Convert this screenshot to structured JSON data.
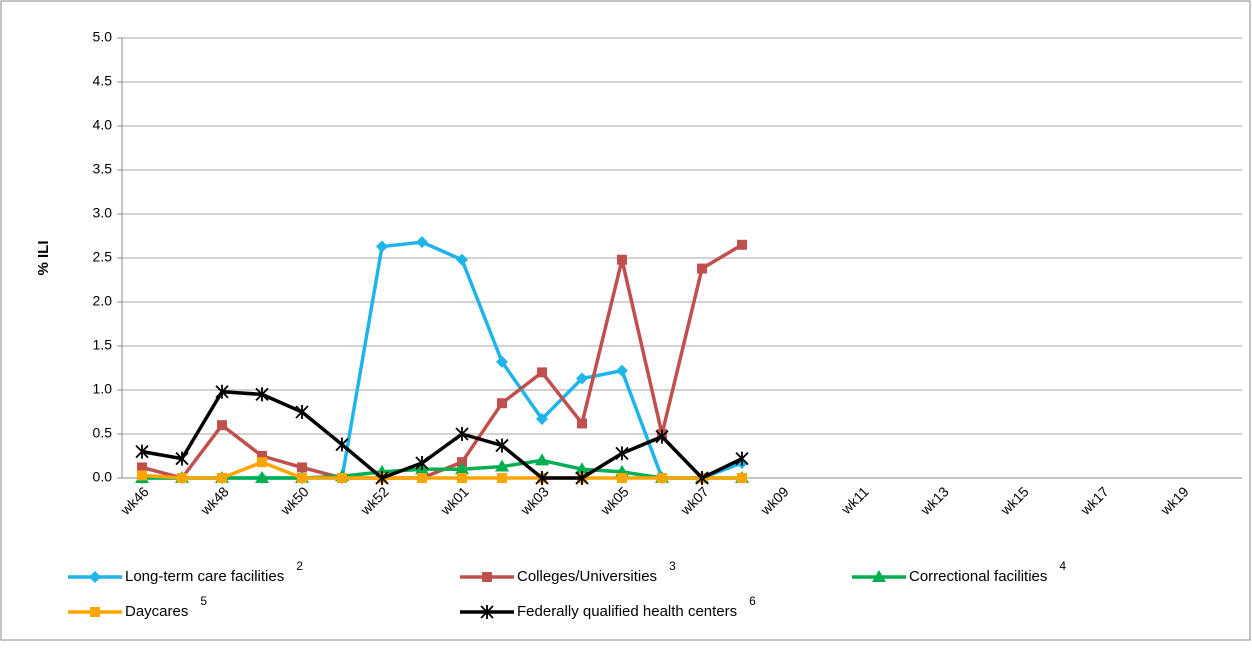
{
  "chart_data": {
    "type": "line",
    "y_label": "% ILI",
    "categories": [
      "wk46",
      null,
      "wk48",
      null,
      "wk50",
      null,
      "wk52",
      null,
      "wk01",
      null,
      "wk03",
      null,
      "wk05",
      null,
      "wk07",
      null,
      "wk09",
      null,
      "wk11",
      null,
      "wk13",
      null,
      "wk15",
      null,
      "wk17",
      null,
      "wk19",
      null
    ],
    "ylim": [
      0,
      5
    ],
    "yticks": [
      {
        "value": 0,
        "label": "0.0"
      },
      0.5,
      {
        "value": 1,
        "label": "1.0"
      },
      1.5,
      {
        "value": 2,
        "label": "2.0"
      },
      2.5,
      {
        "value": 3,
        "label": "3.0"
      },
      3.5,
      {
        "value": 4,
        "label": "4.0"
      },
      4.5,
      {
        "value": 5,
        "label": "5.0"
      }
    ],
    "grid": true,
    "series": [
      {
        "name": "Long-term care facilities",
        "footnote": "2",
        "color": "#1fb4ea",
        "marker": "diamond",
        "values": [
          0,
          0,
          0,
          0,
          0,
          0,
          2.63,
          2.68,
          2.48,
          1.32,
          0.67,
          1.13,
          1.22,
          0,
          0,
          0.17,
          null,
          null,
          null,
          null,
          null,
          null,
          null,
          null,
          null,
          null,
          null,
          null
        ]
      },
      {
        "name": "Colleges/Universities",
        "footnote": "3",
        "color": "#c0504d",
        "marker": "square",
        "values": [
          0.12,
          0,
          0.6,
          0.25,
          0.12,
          0,
          0,
          0,
          0.18,
          0.85,
          1.2,
          0.62,
          2.48,
          0.5,
          2.38,
          2.65,
          null,
          null,
          null,
          null,
          null,
          null,
          null,
          null,
          null,
          null,
          null,
          null
        ]
      },
      {
        "name": "Correctional facilities",
        "footnote": "4",
        "color": "#00b050",
        "marker": "triangle",
        "values": [
          0,
          0,
          0,
          0,
          0,
          0.02,
          0.07,
          0.1,
          0.1,
          0.13,
          0.2,
          0.1,
          0.07,
          0,
          0,
          0,
          null,
          null,
          null,
          null,
          null,
          null,
          null,
          null,
          null,
          null,
          null,
          null
        ]
      },
      {
        "name": "Daycares",
        "footnote": "5",
        "color": "#ffa500",
        "marker": "square",
        "values": [
          0.03,
          0,
          0,
          0.18,
          0,
          0,
          0,
          0,
          0,
          0,
          0,
          0,
          0,
          0,
          0,
          0,
          null,
          null,
          null,
          null,
          null,
          null,
          null,
          null,
          null,
          null,
          null,
          null
        ]
      },
      {
        "name": "Federally qualified health centers",
        "footnote": "6",
        "color": "#000000",
        "marker": "star",
        "values": [
          0.3,
          0.22,
          0.98,
          0.95,
          0.75,
          0.38,
          0,
          0.17,
          0.5,
          0.37,
          0,
          0,
          0.28,
          0.47,
          0,
          0.22,
          null,
          null,
          null,
          null,
          null,
          null,
          null,
          null,
          null,
          null,
          null,
          null
        ]
      }
    ]
  }
}
